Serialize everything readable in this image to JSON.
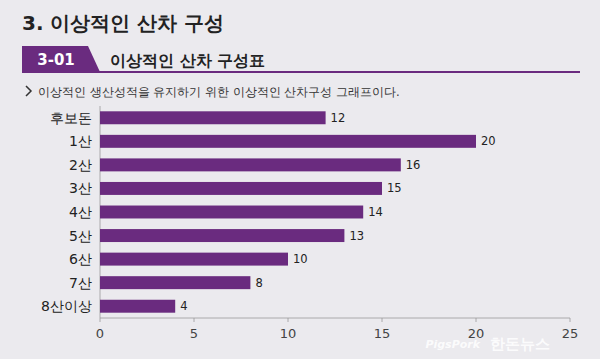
{
  "chart_data": {
    "type": "bar",
    "orientation": "horizontal",
    "heading": "3. 이상적인 산차 구성",
    "badge": "3-01",
    "title": "이상적인 산차 구성표",
    "subtitle": "이상적인 생산성적을 유지하기 위한 이상적인 산차구성 그래프이다.",
    "categories": [
      "후보돈",
      "1산",
      "2산",
      "3산",
      "4산",
      "5산",
      "6산",
      "7산",
      "8산이상"
    ],
    "values": [
      12,
      20,
      16,
      15,
      14,
      13,
      10,
      8,
      4
    ],
    "color": "#6a2b7f",
    "xlim": [
      0,
      25
    ],
    "xticks": [
      0,
      5,
      10,
      15,
      20,
      25
    ],
    "grid": false,
    "data_labels": true,
    "watermark_brand": "PigsPork",
    "watermark": "한돈뉴스"
  }
}
